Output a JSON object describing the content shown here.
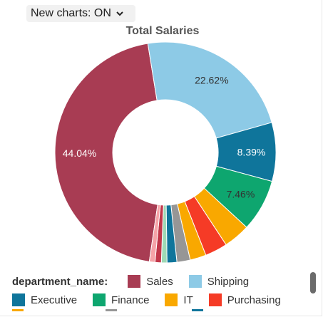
{
  "toggle": {
    "label": "New charts: ON"
  },
  "chart_data": {
    "type": "pie",
    "title": "Total Salaries",
    "donut": true,
    "legend_title": "department_name:",
    "slices": [
      {
        "name": "Sales",
        "percent": 44.04,
        "color": "#A83C53",
        "label": "44.04%",
        "label_color": "#ffffff"
      },
      {
        "name": "Shipping",
        "percent": 22.62,
        "color": "#8DCAE6",
        "label": "22.62%",
        "label_color": "#333333"
      },
      {
        "name": "Executive",
        "percent": 8.39,
        "color": "#0F759B",
        "label": "8.39%",
        "label_color": "#ffffff"
      },
      {
        "name": "Finance",
        "percent": 7.46,
        "color": "#0EA66F",
        "label": "7.46%",
        "label_color": "#333333"
      },
      {
        "name": "IT",
        "percent": 3.8,
        "color": "#F9A800",
        "label": "",
        "label_color": "#333333"
      },
      {
        "name": "Purchasing",
        "percent": 3.2,
        "color": "#F53B26",
        "label": "",
        "label_color": "#333333"
      },
      {
        "name": "",
        "percent": 2.3,
        "color": "#F9A800",
        "label": "",
        "label_color": "#333333"
      },
      {
        "name": "",
        "percent": 1.9,
        "color": "#969696",
        "label": "",
        "label_color": "#333333"
      },
      {
        "name": "",
        "percent": 1.4,
        "color": "#0F759B",
        "label": "",
        "label_color": "#333333"
      },
      {
        "name": "",
        "percent": 0.8,
        "color": "#9FD9B5",
        "label": "",
        "label_color": "#333333"
      },
      {
        "name": "",
        "percent": 0.9,
        "color": "#C2374A",
        "label": "",
        "label_color": "#333333"
      },
      {
        "name": "",
        "percent": 0.8,
        "color": "#F5A3A8",
        "label": "",
        "label_color": "#333333"
      }
    ]
  },
  "legend": {
    "row1": [
      {
        "name": "Sales",
        "color": "#A83C53"
      },
      {
        "name": "Shipping",
        "color": "#8DCAE6"
      }
    ],
    "row2": [
      {
        "name": "Executive",
        "color": "#0F759B"
      },
      {
        "name": "Finance",
        "color": "#0EA66F"
      },
      {
        "name": "IT",
        "color": "#F9A800"
      },
      {
        "name": "Purchasing",
        "color": "#F53B26"
      }
    ],
    "row3_colors": [
      "#F9A800",
      "#969696",
      "#0F759B"
    ]
  }
}
